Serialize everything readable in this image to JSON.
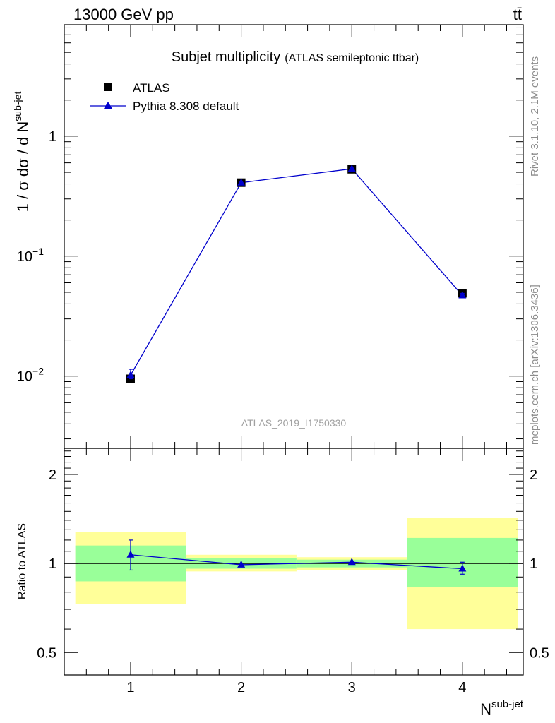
{
  "header": {
    "left": "13000 GeV pp",
    "right": "tt̄"
  },
  "side_labels": {
    "rivet": "Rivet 3.1.10,  2.1M events",
    "mcplots": "mcplots.cern.ch [arXiv:1306.3436]"
  },
  "watermark": "ATLAS_2019_I1750330",
  "chart_data": [
    {
      "type": "scatter",
      "title": "Subjet multiplicity",
      "subtitle": "(ATLAS semileptonic ttbar)",
      "ylabel": "1 / σ dσ / d N",
      "ylabel_sup": "sub-jet",
      "yscale": "log",
      "ylim": [
        0.0025,
        8.5
      ],
      "xlim": [
        0.4,
        4.55
      ],
      "y_tick_labels": [
        {
          "value": 0.01,
          "base": "10",
          "exp": "−2"
        },
        {
          "value": 0.1,
          "base": "10",
          "exp": "−1"
        },
        {
          "value": 1,
          "base": "1",
          "exp": ""
        }
      ],
      "legend_position": "top-left",
      "x": [
        1,
        2,
        3,
        4
      ],
      "series": [
        {
          "name": "ATLAS",
          "marker": "square",
          "color": "#000000",
          "values": [
            0.0095,
            0.41,
            0.53,
            0.049
          ]
        },
        {
          "name": "Pythia 8.308 default",
          "marker": "triangle",
          "color": "#0000cc",
          "values": [
            0.0102,
            0.41,
            0.535,
            0.047
          ],
          "err_low": [
            0.0007,
            0,
            0,
            0.002
          ],
          "err_high": [
            0.0012,
            0,
            0,
            0.002
          ]
        }
      ]
    },
    {
      "type": "scatter",
      "ylabel": "Ratio to ATLAS",
      "xlabel": "N",
      "xlabel_sup": "sub-jet",
      "ylim": [
        0.42,
        2.45
      ],
      "xlim": [
        0.4,
        4.55
      ],
      "x_tick_labels": [
        "1",
        "2",
        "3",
        "4"
      ],
      "y_tick_labels": [
        "0.5",
        "1",
        "2"
      ],
      "reference_line": 1,
      "bands": [
        {
          "x_range": [
            0.5,
            1.5
          ],
          "yellow": [
            0.73,
            1.28
          ],
          "green": [
            0.87,
            1.15
          ]
        },
        {
          "x_range": [
            1.5,
            2.5
          ],
          "yellow": [
            0.94,
            1.07
          ],
          "green": [
            0.96,
            1.04
          ]
        },
        {
          "x_range": [
            2.5,
            3.5
          ],
          "yellow": [
            0.95,
            1.05
          ],
          "green": [
            0.97,
            1.03
          ]
        },
        {
          "x_range": [
            3.5,
            4.5
          ],
          "yellow": [
            0.6,
            1.43
          ],
          "green": [
            0.83,
            1.22
          ]
        }
      ],
      "band_colors": {
        "yellow": "#ffff99",
        "green": "#99ff99"
      },
      "series": [
        {
          "name": "Pythia 8.308 default",
          "color": "#0000cc",
          "x": [
            1,
            2,
            3,
            4
          ],
          "values": [
            1.07,
            0.99,
            1.01,
            0.96
          ],
          "err_low": [
            0.12,
            0,
            0,
            0.04
          ],
          "err_high": [
            0.13,
            0,
            0,
            0.05
          ]
        }
      ]
    }
  ]
}
